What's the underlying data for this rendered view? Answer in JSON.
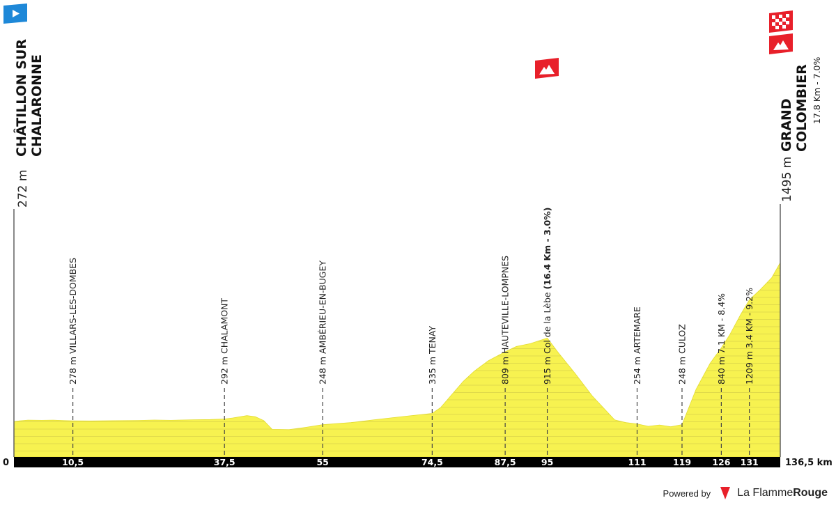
{
  "chart_data": {
    "type": "area",
    "xlim": [
      0,
      136.5
    ],
    "ylim": [
      0,
      1495
    ],
    "fill_color": "#f7f250",
    "baseline_color": "#000000",
    "profile": [
      [
        0,
        272
      ],
      [
        1,
        278
      ],
      [
        2.5,
        283
      ],
      [
        5,
        282
      ],
      [
        7,
        283
      ],
      [
        9,
        280
      ],
      [
        10.5,
        278
      ],
      [
        14,
        277
      ],
      [
        18,
        279
      ],
      [
        22,
        281
      ],
      [
        25,
        284
      ],
      [
        28,
        282
      ],
      [
        32,
        286
      ],
      [
        35,
        288
      ],
      [
        37.5,
        292
      ],
      [
        39,
        300
      ],
      [
        41.5,
        318
      ],
      [
        43,
        309
      ],
      [
        44.5,
        280
      ],
      [
        46,
        212
      ],
      [
        49,
        210
      ],
      [
        52,
        228
      ],
      [
        55,
        248
      ],
      [
        60,
        264
      ],
      [
        65,
        290
      ],
      [
        70,
        314
      ],
      [
        74.5,
        335
      ],
      [
        76,
        380
      ],
      [
        78,
        480
      ],
      [
        80,
        580
      ],
      [
        82,
        660
      ],
      [
        84.5,
        740
      ],
      [
        87.5,
        809
      ],
      [
        89.5,
        850
      ],
      [
        92,
        872
      ],
      [
        95,
        915
      ],
      [
        97,
        800
      ],
      [
        100,
        640
      ],
      [
        103,
        470
      ],
      [
        107,
        285
      ],
      [
        109,
        264
      ],
      [
        111,
        254
      ],
      [
        113,
        236
      ],
      [
        115,
        246
      ],
      [
        117,
        232
      ],
      [
        119,
        248
      ],
      [
        121.5,
        520
      ],
      [
        124,
        720
      ],
      [
        126,
        840
      ],
      [
        127.5,
        940
      ],
      [
        129.5,
        1100
      ],
      [
        131,
        1209
      ],
      [
        133,
        1290
      ],
      [
        135,
        1380
      ],
      [
        136.5,
        1495
      ]
    ],
    "markers": [
      {
        "km": 10.5,
        "label": "10,5",
        "text": "278 m VILLARS-LES-DOMBES"
      },
      {
        "km": 37.5,
        "label": "37,5",
        "text": "292 m CHALAMONT"
      },
      {
        "km": 55,
        "label": "55",
        "text": "248 m AMBÉRIEU-EN-BUGEY"
      },
      {
        "km": 74.5,
        "label": "74,5",
        "text": "335 m TENAY"
      },
      {
        "km": 87.5,
        "label": "87,5",
        "text": "809 m HAUTEVILLE-LOMPNES"
      },
      {
        "km": 95,
        "label": "95",
        "text": "915 m Col de la Lèbe ",
        "bold": "(16.4 Km - 3.0%)"
      },
      {
        "km": 111,
        "label": "111",
        "text": "254 m ARTEMARE"
      },
      {
        "km": 119,
        "label": "119",
        "text": "248 m CULOZ"
      },
      {
        "km": 126,
        "label": "126",
        "text": "840 m 7.1 KM - 8.4%"
      },
      {
        "km": 131,
        "label": "131",
        "text": "1209 m 3.4 KM - 9.2%"
      }
    ],
    "start": {
      "km_label": "0",
      "alt": "272 m",
      "lines": [
        "CHÂTILLON SUR",
        "CHALARONNE"
      ]
    },
    "finish": {
      "km_label": "136,5 km",
      "alt": "1495 m",
      "lines": [
        "GRAND",
        "COLOMBIER"
      ],
      "sub": "17.8 Km - 7.0%"
    }
  },
  "footer": {
    "powered": "Powered by",
    "brand_a": "La Flamme",
    "brand_b": "Rouge"
  },
  "colors": {
    "climb_red": "#e8202a",
    "start_blue": "#1e88d8",
    "fill": "#f7f250"
  }
}
